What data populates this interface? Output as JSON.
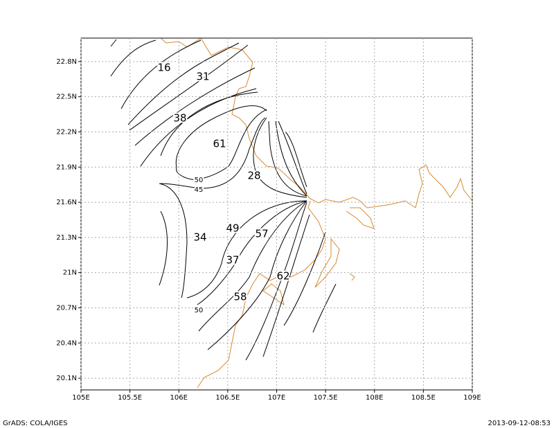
{
  "map": {
    "xlim": [
      105,
      109
    ],
    "ylim": [
      20,
      23
    ],
    "xticks": [
      {
        "value": 105,
        "label": "105E"
      },
      {
        "value": 105.5,
        "label": "105.5E"
      },
      {
        "value": 106,
        "label": "106E"
      },
      {
        "value": 106.5,
        "label": "106.5E"
      },
      {
        "value": 107,
        "label": "107E"
      },
      {
        "value": 107.5,
        "label": "107.5E"
      },
      {
        "value": 108,
        "label": "108E"
      },
      {
        "value": 108.5,
        "label": "108.5E"
      },
      {
        "value": 109,
        "label": "109E"
      }
    ],
    "yticks": [
      {
        "value": 20.1,
        "label": "20.1N"
      },
      {
        "value": 20.4,
        "label": "20.4N"
      },
      {
        "value": 20.7,
        "label": "20.7N"
      },
      {
        "value": 21,
        "label": "21N"
      },
      {
        "value": 21.3,
        "label": "21.3N"
      },
      {
        "value": 21.6,
        "label": "21.6N"
      },
      {
        "value": 21.9,
        "label": "21.9N"
      },
      {
        "value": 22.2,
        "label": "22.2N"
      },
      {
        "value": 22.5,
        "label": "22.5N"
      },
      {
        "value": 22.8,
        "label": "22.8N"
      }
    ],
    "contour_labels": [
      16,
      31,
      38,
      61,
      50,
      45,
      28,
      49,
      57,
      34,
      37,
      62,
      58,
      50
    ]
  },
  "footer": {
    "left": "GrADS: COLA/IGES",
    "right": "2013-09-12-08:53"
  }
}
